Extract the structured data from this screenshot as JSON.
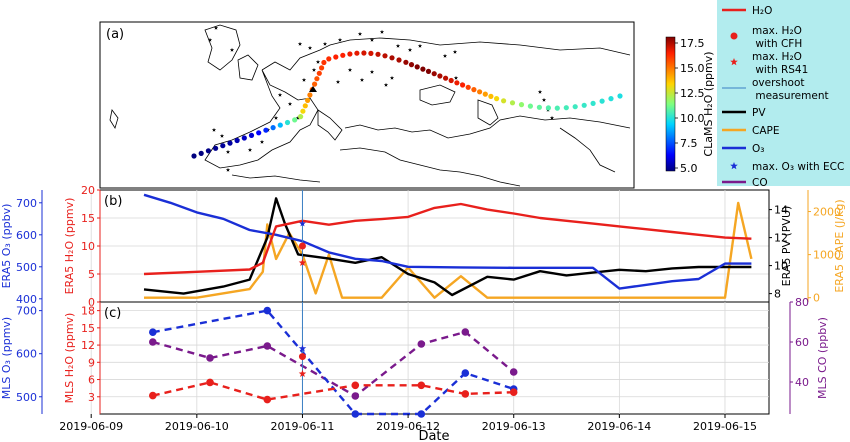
{
  "colors": {
    "h2o": "#e8201c",
    "pv": "#000000",
    "cape": "#f5a623",
    "o3": "#1a2fd6",
    "co": "#7a1a8c",
    "overshoot": "#3a7fc4",
    "legend_bg": "#b2ecee"
  },
  "legend": {
    "items": [
      {
        "label": "H₂O",
        "kind": "line",
        "color": "#e8201c"
      },
      {
        "label": "max. H₂O\n with CFH",
        "kind": "dot",
        "color": "#e8201c"
      },
      {
        "label": "max. H₂O\n with RS41",
        "kind": "star",
        "color": "#e8201c"
      },
      {
        "label": "overshoot\n measurement",
        "kind": "thinline",
        "color": "#3a7fc4"
      },
      {
        "label": "PV",
        "kind": "line",
        "color": "#000000"
      },
      {
        "label": "CAPE",
        "kind": "line",
        "color": "#f5a623"
      },
      {
        "label": "O₃",
        "kind": "line",
        "color": "#1a2fd6"
      },
      {
        "label": "max. O₃ with ECC",
        "kind": "star",
        "color": "#1a2fd6"
      },
      {
        "label": "CO",
        "kind": "line",
        "color": "#7a1a8c"
      }
    ]
  },
  "chart_data": [
    {
      "panel": "(a)",
      "type": "scatter",
      "title": "",
      "colorbar": {
        "label": "CLaMS H₂O (ppmv)",
        "min": 5.0,
        "max": 17.5,
        "ticks": [
          "17.5",
          "15.0",
          "12.5",
          "10.0",
          "7.5",
          "5.0"
        ]
      },
      "trajectory_h2o": [
        5.0,
        5.0,
        5.1,
        5.2,
        5.3,
        5.4,
        5.6,
        5.8,
        6.0,
        6.5,
        7.0,
        8.0,
        9.0,
        10.0,
        11.0,
        12.0,
        13.0,
        13.5,
        14.0,
        14.5,
        15.0,
        15.0,
        15.2,
        15.5,
        15.5,
        15.7,
        15.8,
        16.0,
        16.0,
        16.2,
        16.3,
        16.5,
        16.5,
        16.7,
        16.8,
        17.0,
        17.0,
        17.2,
        17.3,
        17.5,
        17.5,
        17.5,
        17.2,
        17.0,
        16.8,
        16.5,
        16.2,
        16.0,
        15.5,
        15.0,
        14.5,
        14.0,
        13.5,
        13.0,
        12.5,
        12.0,
        11.5,
        11.0,
        10.8,
        10.6,
        10.5,
        10.4,
        10.3,
        10.2,
        10.1,
        10.0,
        9.9,
        9.8
      ]
    },
    {
      "panel": "(b)",
      "type": "line",
      "x_range": [
        "2019-06-09",
        "2019-06-15"
      ],
      "left_axes": [
        {
          "label": "ERA5 O₃ (ppbv)",
          "ticks": [
            "400",
            "500",
            "600",
            "700"
          ],
          "range": [
            390,
            740
          ]
        },
        {
          "label": "ERA5 H₂O (ppmv)",
          "ticks": [
            "0",
            "5",
            "10",
            "15",
            "20"
          ],
          "range": [
            0,
            20
          ]
        }
      ],
      "right_axes": [
        {
          "label": "ERA5 PV (PVU)",
          "ticks": [
            "8",
            "10",
            "12",
            "14"
          ],
          "range": [
            7.4,
            15.4
          ]
        },
        {
          "label": "ERA5 CAPE (J/kg)",
          "ticks": [
            "0",
            "1000",
            "2000"
          ],
          "range": [
            -100,
            2500
          ]
        }
      ],
      "series": [
        {
          "name": "H₂O",
          "axis": "h2o",
          "x": [
            "2019-06-09 12:00",
            "2019-06-10 00:00",
            "2019-06-10 12:00",
            "2019-06-10 15:00",
            "2019-06-10 18:00",
            "2019-06-11 00:00",
            "2019-06-11 06:00",
            "2019-06-11 12:00",
            "2019-06-11 18:00",
            "2019-06-12 00:00",
            "2019-06-12 06:00",
            "2019-06-12 12:00",
            "2019-06-12 18:00",
            "2019-06-13 00:00",
            "2019-06-13 06:00",
            "2019-06-13 12:00",
            "2019-06-13 18:00",
            "2019-06-14 00:00",
            "2019-06-14 06:00",
            "2019-06-14 12:00",
            "2019-06-14 18:00",
            "2019-06-15 00:00",
            "2019-06-15 06:00"
          ],
          "y": [
            5,
            5.4,
            5.8,
            7,
            13.5,
            14.5,
            13.8,
            14.5,
            14.8,
            15.2,
            16.8,
            17.5,
            16.5,
            15.8,
            15,
            14.5,
            14,
            13.5,
            13,
            12.5,
            12,
            11.5,
            11.3
          ]
        },
        {
          "name": "PV",
          "axis": "pv",
          "x": [
            "2019-06-09 12:00",
            "2019-06-09 21:00",
            "2019-06-10 06:00",
            "2019-06-10 12:00",
            "2019-06-10 16:00",
            "2019-06-10 18:00",
            "2019-06-10 20:00",
            "2019-06-10 23:00",
            "2019-06-11 06:00",
            "2019-06-11 12:00",
            "2019-06-11 18:00",
            "2019-06-12 00:00",
            "2019-06-12 06:00",
            "2019-06-12 10:00",
            "2019-06-12 18:00",
            "2019-06-13 00:00",
            "2019-06-13 06:00",
            "2019-06-13 12:00",
            "2019-06-13 18:00",
            "2019-06-14 00:00",
            "2019-06-14 06:00",
            "2019-06-14 12:00",
            "2019-06-14 18:00",
            "2019-06-15 06:00"
          ],
          "y": [
            8.3,
            8,
            8.5,
            9,
            12,
            14.8,
            13,
            10.8,
            10.5,
            10.2,
            10.6,
            9.4,
            8.8,
            7.9,
            9.2,
            9.0,
            9.6,
            9.3,
            9.5,
            9.7,
            9.6,
            9.8,
            9.9,
            9.9
          ]
        },
        {
          "name": "CAPE",
          "axis": "cape",
          "x": [
            "2019-06-09 12:00",
            "2019-06-10 00:00",
            "2019-06-10 12:00",
            "2019-06-10 15:00",
            "2019-06-10 16:00",
            "2019-06-10 18:00",
            "2019-06-10 21:00",
            "2019-06-11 00:00",
            "2019-06-11 03:00",
            "2019-06-11 06:00",
            "2019-06-11 09:00",
            "2019-06-11 18:00",
            "2019-06-12 00:00",
            "2019-06-12 06:00",
            "2019-06-12 12:00",
            "2019-06-12 18:00",
            "2019-06-13 00:00",
            "2019-06-13 12:00",
            "2019-06-14 00:00",
            "2019-06-14 12:00",
            "2019-06-14 18:00",
            "2019-06-15 00:00",
            "2019-06-15 03:00",
            "2019-06-15 06:00"
          ],
          "y": [
            0,
            0,
            200,
            600,
            1700,
            900,
            1500,
            1000,
            100,
            1000,
            0,
            0,
            700,
            0,
            500,
            0,
            0,
            0,
            0,
            0,
            0,
            0,
            2200,
            900
          ]
        },
        {
          "name": "O₃",
          "axis": "o3",
          "x": [
            "2019-06-09 12:00",
            "2019-06-09 18:00",
            "2019-06-10 00:00",
            "2019-06-10 06:00",
            "2019-06-10 12:00",
            "2019-06-10 18:00",
            "2019-06-11 00:00",
            "2019-06-11 06:00",
            "2019-06-11 12:00",
            "2019-06-11 18:00",
            "2019-06-12 00:00",
            "2019-06-12 12:00",
            "2019-06-13 00:00",
            "2019-06-13 12:00",
            "2019-06-13 18:00",
            "2019-06-14 00:00",
            "2019-06-14 12:00",
            "2019-06-14 18:00",
            "2019-06-15 00:00",
            "2019-06-15 06:00"
          ],
          "y": [
            725,
            700,
            670,
            650,
            615,
            600,
            580,
            545,
            525,
            518,
            500,
            498,
            497,
            497,
            497,
            432,
            455,
            462,
            510,
            510
          ]
        }
      ]
    },
    {
      "panel": "(c)",
      "type": "line",
      "xlabel": "Date",
      "x_ticks": [
        "2019-06-09",
        "2019-06-10",
        "2019-06-11",
        "2019-06-12",
        "2019-06-13",
        "2019-06-14",
        "2019-06-15"
      ],
      "left_axes": [
        {
          "label": "MLS O₃ (ppmv)",
          "ticks": [
            "500",
            "600",
            "700"
          ],
          "range": [
            460,
            720
          ]
        },
        {
          "label": "MLS H₂O (ppmv)",
          "ticks": [
            "3",
            "6",
            "9",
            "12",
            "15",
            "18"
          ],
          "range": [
            0,
            19.5
          ]
        }
      ],
      "right_axes": [
        {
          "label": "MLS CO (ppbv)",
          "ticks": [
            "40",
            "60",
            "80"
          ],
          "range": [
            24,
            80
          ]
        }
      ],
      "series": [
        {
          "name": "H₂O",
          "axis": "h2o",
          "x": [
            "2019-06-09 14:00",
            "2019-06-10 03:00",
            "2019-06-10 16:00",
            "2019-06-11 12:00",
            "2019-06-12 03:00",
            "2019-06-12 13:00",
            "2019-06-13 00:00"
          ],
          "y": [
            3.2,
            5.5,
            2.5,
            5,
            5,
            3.5,
            3.8
          ]
        },
        {
          "name": "O₃",
          "axis": "o3",
          "x": [
            "2019-06-09 14:00",
            "2019-06-10 16:00",
            "2019-06-11 12:00",
            "2019-06-12 03:00",
            "2019-06-12 13:00",
            "2019-06-13 00:00"
          ],
          "y": [
            650,
            700,
            460,
            460,
            555,
            518
          ]
        },
        {
          "name": "CO",
          "axis": "co",
          "x": [
            "2019-06-09 14:00",
            "2019-06-10 03:00",
            "2019-06-10 16:00",
            "2019-06-11 12:00",
            "2019-06-12 03:00",
            "2019-06-12 13:00",
            "2019-06-13 00:00"
          ],
          "y": [
            60,
            52,
            58,
            33,
            59,
            65,
            45
          ]
        }
      ],
      "markers": [
        {
          "name": "max. H₂O with CFH",
          "axis": "h2o",
          "x": "2019-06-11 00:00",
          "y": 10
        },
        {
          "name": "max. H₂O with RS41",
          "axis": "h2o",
          "x": "2019-06-11 00:00",
          "y": 7
        },
        {
          "name": "max. O₃ with ECC",
          "axis": "o3",
          "x": "2019-06-11 00:00",
          "y": 612
        }
      ],
      "overshoot_x": "2019-06-11 00:00"
    }
  ]
}
